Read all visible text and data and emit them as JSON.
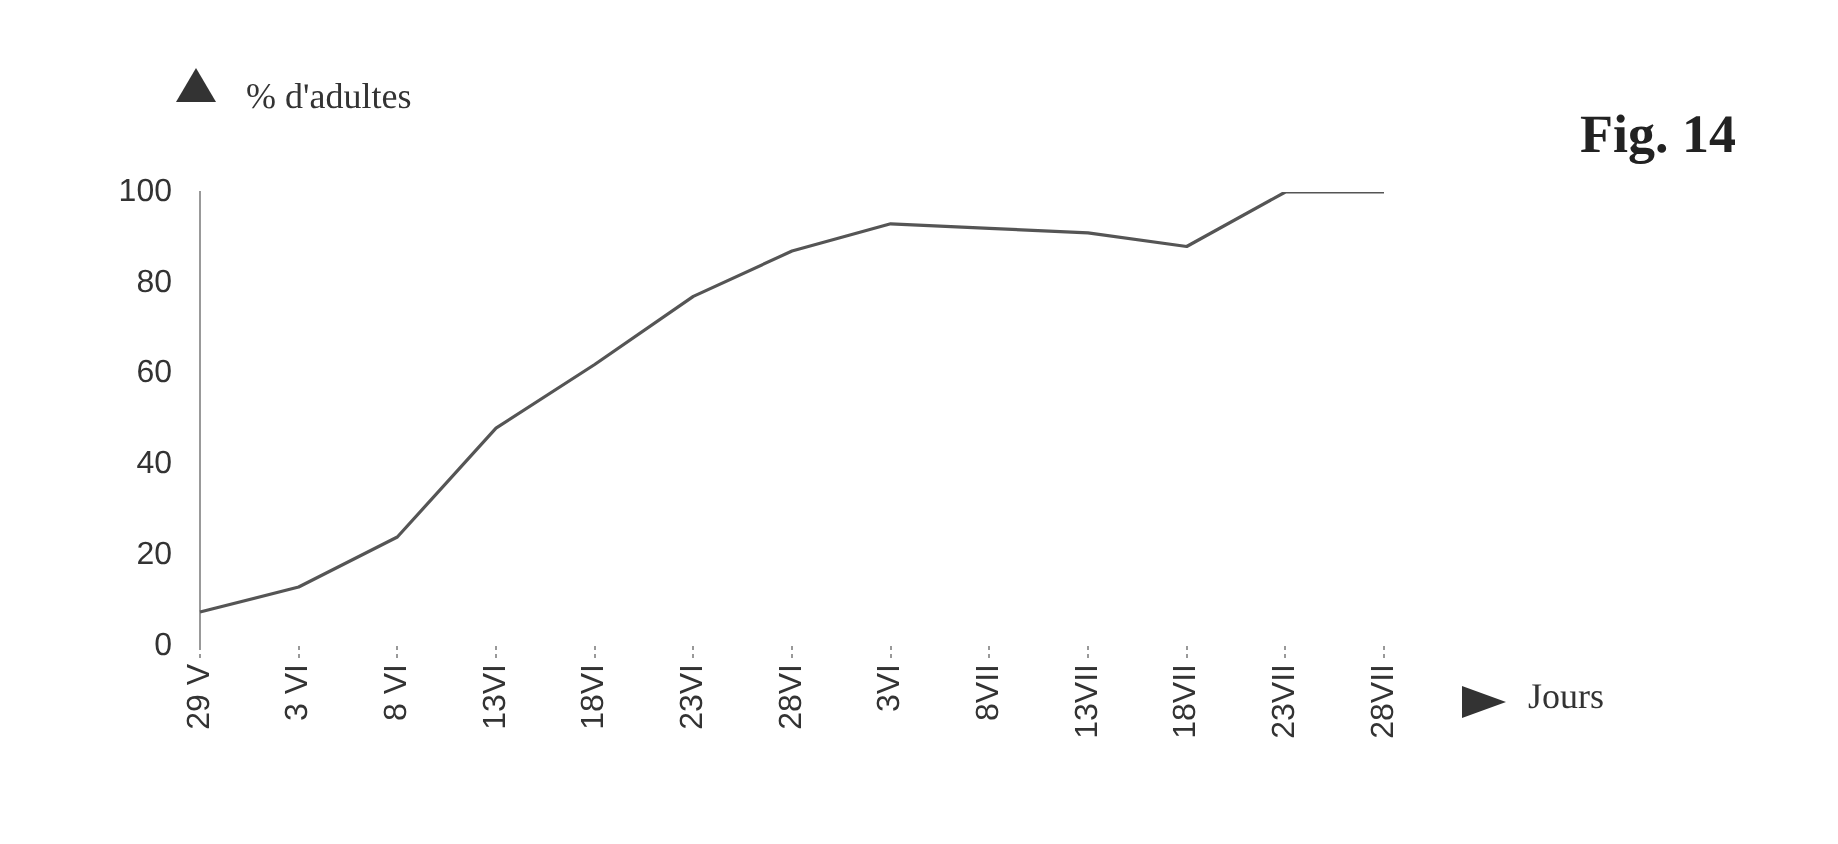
{
  "chart_data": {
    "type": "line",
    "title": "Fig. 14",
    "ylabel": "% d'adultes",
    "xlabel": "Jours",
    "categories": [
      "29 V",
      "3 VI",
      "8 VI",
      "13VI",
      "18VI",
      "23VI",
      "28VI",
      "3VI",
      "8VII",
      "13VII",
      "18VII",
      "23VII",
      "28VII"
    ],
    "values": [
      7.5,
      13,
      24,
      48,
      62,
      77,
      87,
      93,
      92,
      91,
      88,
      100,
      100
    ],
    "color": "#555555",
    "marker": "none",
    "ylim": [
      0,
      100
    ],
    "yticks": [
      0,
      20,
      40,
      60,
      80,
      100
    ]
  }
}
